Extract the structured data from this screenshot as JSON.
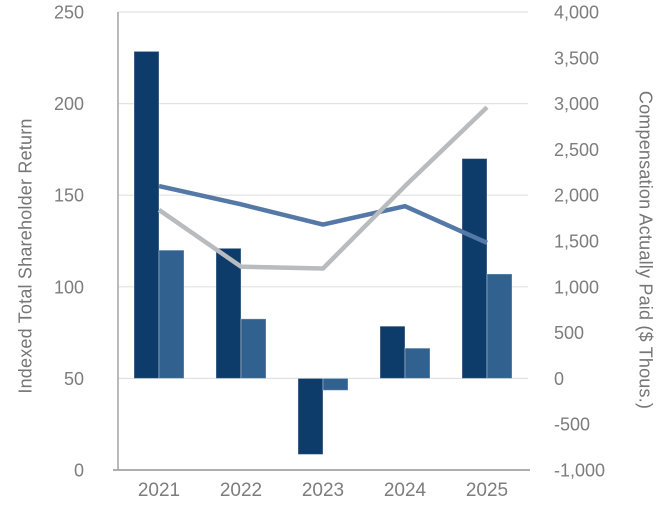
{
  "chart_data": {
    "type": "bar",
    "subtype": "combo-bar-line-dual-axis",
    "categories": [
      "2021",
      "2022",
      "2023",
      "2024",
      "2025"
    ],
    "series": [
      {
        "name": "dark-blue-bars",
        "type": "bar",
        "axis": "right",
        "color": "#0e3c6a",
        "values": [
          3570,
          1420,
          -830,
          570,
          2400
        ]
      },
      {
        "name": "light-blue-bars",
        "type": "bar",
        "axis": "right",
        "color": "#30618f",
        "values": [
          1400,
          650,
          -130,
          330,
          1140
        ]
      },
      {
        "name": "blue-line",
        "type": "line",
        "axis": "left",
        "color": "#5579a7",
        "values": [
          155,
          145,
          134,
          144,
          124
        ]
      },
      {
        "name": "gray-line",
        "type": "line",
        "axis": "left",
        "color": "#b9bcbf",
        "values": [
          142,
          111,
          110,
          155,
          198
        ]
      }
    ],
    "left_axis": {
      "label": "Indexed Total Shareholder Return",
      "min": 0,
      "max": 250,
      "ticks": [
        "0",
        "50",
        "100",
        "150",
        "200",
        "250"
      ]
    },
    "right_axis": {
      "label": "Compensation Actually Paid ($ Thous.)",
      "min": -1000,
      "max": 4000,
      "ticks": [
        "-1,000",
        "-500",
        "0",
        "500",
        "1,000",
        "1,500",
        "2,000",
        "2,500",
        "3,000",
        "3,500",
        "4,000"
      ]
    },
    "grid": "horizontal-on",
    "legend": "none",
    "colors": {
      "gridline": "#e2e2e2",
      "axis_line": "#a3a3a3",
      "tick_text": "#7d7d7d"
    }
  }
}
